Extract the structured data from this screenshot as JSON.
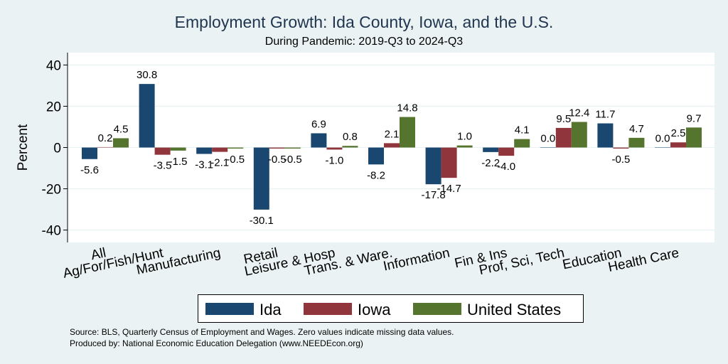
{
  "chart_data": {
    "type": "bar",
    "title": "Employment Growth: Ida County, Iowa, and the U.S.",
    "subtitle": "During Pandemic: 2019-Q3 to 2024-Q3",
    "ylabel": "Percent",
    "ylim": [
      -46,
      46
    ],
    "yticks": [
      -40,
      -20,
      0,
      20,
      40
    ],
    "grid": true,
    "legend_position": "bottom",
    "categories": [
      "All",
      "Ag/For/Fish/Hunt",
      "Manufacturing",
      "Retail",
      "Leisure & Hosp",
      "Trans. & Ware.",
      "Information",
      "Fin & Ins",
      "Prof, Sci, Tech",
      "Education",
      "Health Care"
    ],
    "series": [
      {
        "name": "Ida",
        "color": "#1a476f",
        "values": [
          -5.6,
          30.8,
          -3.1,
          -30.1,
          6.9,
          -8.2,
          -17.8,
          -2.2,
          0.0,
          11.7,
          0.0
        ]
      },
      {
        "name": "Iowa",
        "color": "#90353b",
        "values": [
          0.2,
          -3.5,
          -2.1,
          -0.5,
          -1.0,
          2.1,
          -14.7,
          -4.0,
          9.5,
          -0.5,
          2.5
        ]
      },
      {
        "name": "United States",
        "color": "#55752f",
        "values": [
          4.5,
          -1.5,
          -0.5,
          -0.5,
          0.8,
          14.8,
          1.0,
          4.1,
          12.4,
          4.7,
          9.7
        ]
      }
    ],
    "notes": [
      "Source: BLS, Quarterly Census of Employment and Wages. Zero values indicate missing data values.",
      "Produced by: National Economic Education Delegation (www.NEEDEcon.org)"
    ]
  }
}
